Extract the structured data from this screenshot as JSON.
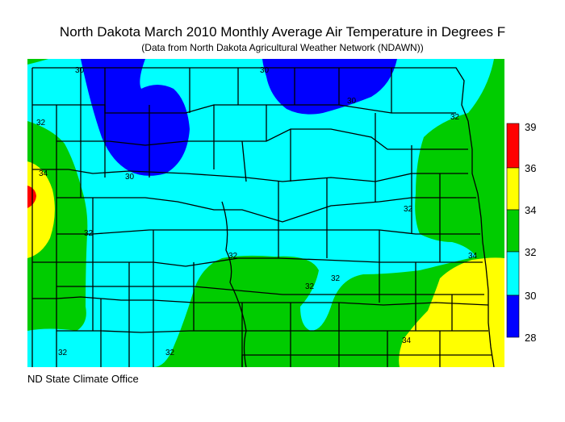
{
  "title": "North Dakota March 2010 Monthly Average Air Temperature in Degrees F",
  "subtitle": "(Data from North Dakota Agricultural Weather Network (NDAWN))",
  "credit": "ND State Climate Office",
  "legend": {
    "stops": [
      {
        "label": "39",
        "color": "#ff0000"
      },
      {
        "label": "36",
        "color": "#ffff00"
      },
      {
        "label": "34",
        "color": "#00cc00"
      },
      {
        "label": "32",
        "color": "#00ffff"
      },
      {
        "label": "30",
        "color": "#0000ff"
      },
      {
        "label": "28",
        "color": ""
      }
    ]
  },
  "colors": {
    "band_28_30": "#0000ff",
    "band_30_32": "#00ffff",
    "band_32_34": "#00cc00",
    "band_34_36": "#ffff00",
    "band_36_39": "#ff0000",
    "county_lines": "#000000"
  },
  "contour_labels": [
    "30",
    "30",
    "30",
    "30",
    "32",
    "32",
    "32",
    "32",
    "32",
    "32",
    "32",
    "32",
    "34",
    "34",
    "34",
    "32"
  ]
}
